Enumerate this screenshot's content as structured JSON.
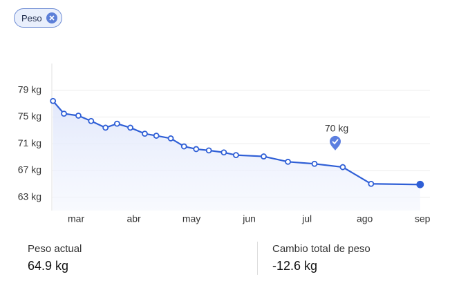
{
  "filter_chip": "Peso",
  "chart_data": {
    "type": "line",
    "x": [
      2.6,
      2.79,
      3.04,
      3.26,
      3.51,
      3.71,
      3.94,
      4.19,
      4.39,
      4.64,
      4.87,
      5.08,
      5.3,
      5.56,
      5.77,
      6.25,
      6.67,
      7.13,
      7.62,
      8.11,
      8.96
    ],
    "series": [
      {
        "name": "Peso",
        "color": "#2f5fd6",
        "values": [
          77.4,
          75.5,
          75.2,
          74.4,
          73.4,
          74.0,
          73.4,
          72.5,
          72.2,
          71.8,
          70.6,
          70.2,
          70.0,
          69.7,
          69.3,
          69.1,
          68.3,
          68.0,
          67.5,
          65.0,
          64.9
        ]
      }
    ],
    "xlim": [
      2.58,
      9.13
    ],
    "xticks": [
      {
        "value": 3,
        "label": "mar"
      },
      {
        "value": 4,
        "label": "abr"
      },
      {
        "value": 5,
        "label": "may"
      },
      {
        "value": 6,
        "label": "jun"
      },
      {
        "value": 7,
        "label": "jul"
      },
      {
        "value": 8,
        "label": "ago"
      },
      {
        "value": 9,
        "label": "sep"
      }
    ],
    "ylim": [
      61,
      83
    ],
    "yticks": [
      {
        "value": 63,
        "label": "63 kg"
      },
      {
        "value": 67,
        "label": "67 kg"
      },
      {
        "value": 71,
        "label": "71 kg"
      },
      {
        "value": 75,
        "label": "75 kg"
      },
      {
        "value": 79,
        "label": "79 kg"
      }
    ],
    "grid": true,
    "goal": {
      "value": 70,
      "label": "70 kg"
    }
  },
  "stats": [
    {
      "label": "Peso actual",
      "value": "64.9 kg"
    },
    {
      "label": "Cambio total de peso",
      "value": "-12.6 kg"
    }
  ]
}
